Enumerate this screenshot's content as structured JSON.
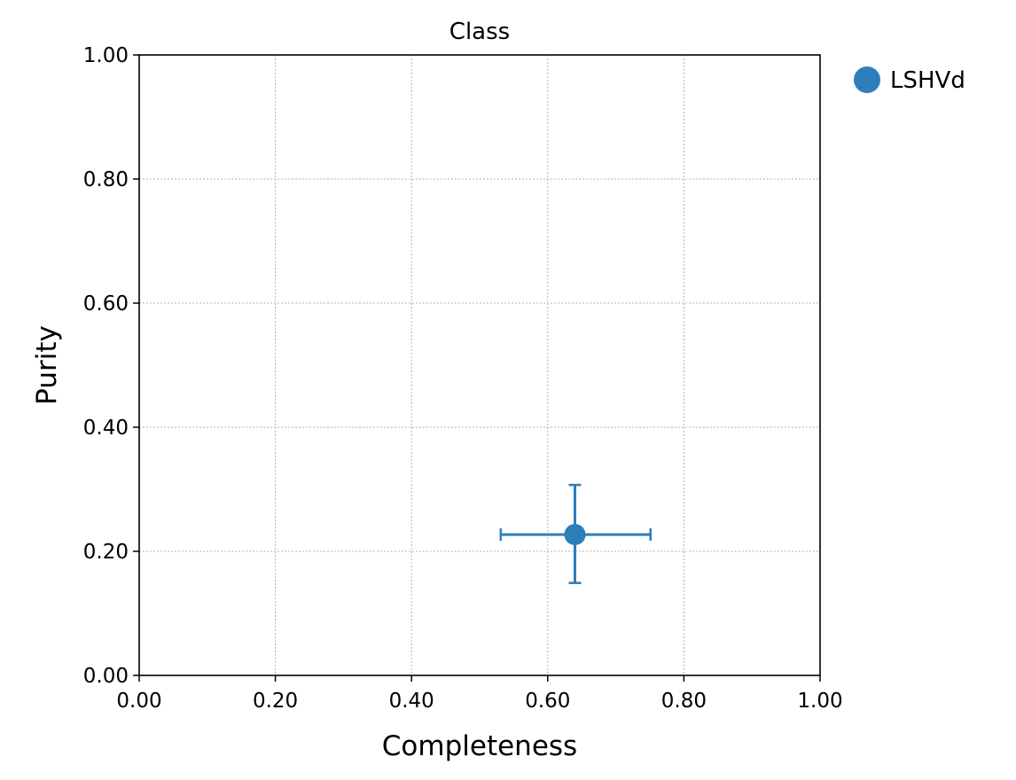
{
  "chart_data": {
    "type": "scatter",
    "title": "Class",
    "xlabel": "Completeness",
    "ylabel": "Purity",
    "xlim": [
      0,
      1
    ],
    "ylim": [
      0,
      1
    ],
    "xticks": [
      "0.00",
      "0.20",
      "0.40",
      "0.60",
      "0.80",
      "1.00"
    ],
    "yticks": [
      "0.00",
      "0.20",
      "0.40",
      "0.60",
      "0.80",
      "1.00"
    ],
    "grid": true,
    "legend_position": "outside-top-right",
    "series": [
      {
        "name": "LSHVd",
        "color": "#2e7ebc",
        "x": 0.64,
        "y": 0.227,
        "x_err": [
          0.531,
          0.751
        ],
        "y_err": [
          0.149,
          0.307
        ]
      }
    ]
  }
}
